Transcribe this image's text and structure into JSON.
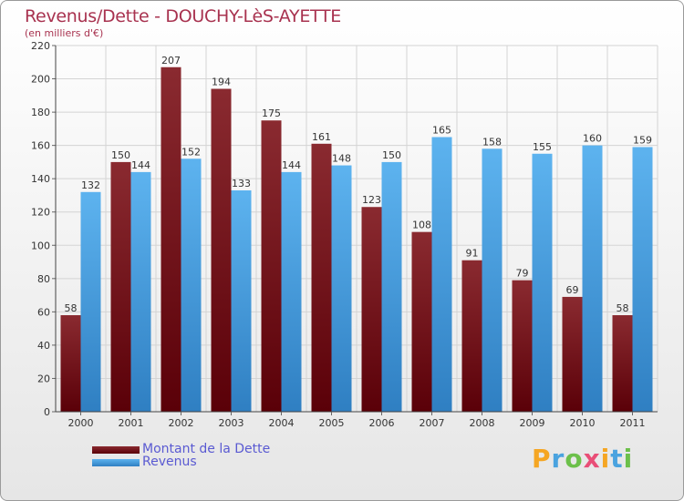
{
  "title": "Revenus/Dette - DOUCHY-LèS-AYETTE",
  "subtitle": "(en milliers d'€)",
  "logo": {
    "letters": [
      "P",
      "r",
      "o",
      "x",
      "i",
      "t",
      "i"
    ],
    "colors": [
      "#f5a623",
      "#4aa3df",
      "#6cc04a",
      "#e94e77",
      "#f5a623",
      "#4aa3df",
      "#6cc04a"
    ]
  },
  "chart_data": {
    "type": "bar",
    "categories": [
      "2000",
      "2001",
      "2002",
      "2003",
      "2004",
      "2005",
      "2006",
      "2007",
      "2008",
      "2009",
      "2010",
      "2011"
    ],
    "series": [
      {
        "name": "Montant de la Dette",
        "values": [
          58,
          150,
          207,
          194,
          175,
          161,
          123,
          108,
          91,
          79,
          69,
          58
        ],
        "color": "#7a1a22"
      },
      {
        "name": "Revenus",
        "values": [
          132,
          144,
          152,
          133,
          144,
          148,
          150,
          165,
          158,
          155,
          160,
          159
        ],
        "color": "#4fa8e8"
      }
    ],
    "ylim": [
      0,
      220
    ],
    "yticks": [
      0,
      20,
      40,
      60,
      80,
      100,
      120,
      140,
      160,
      180,
      200,
      220
    ],
    "grid": true,
    "legend_position": "bottom-left"
  }
}
